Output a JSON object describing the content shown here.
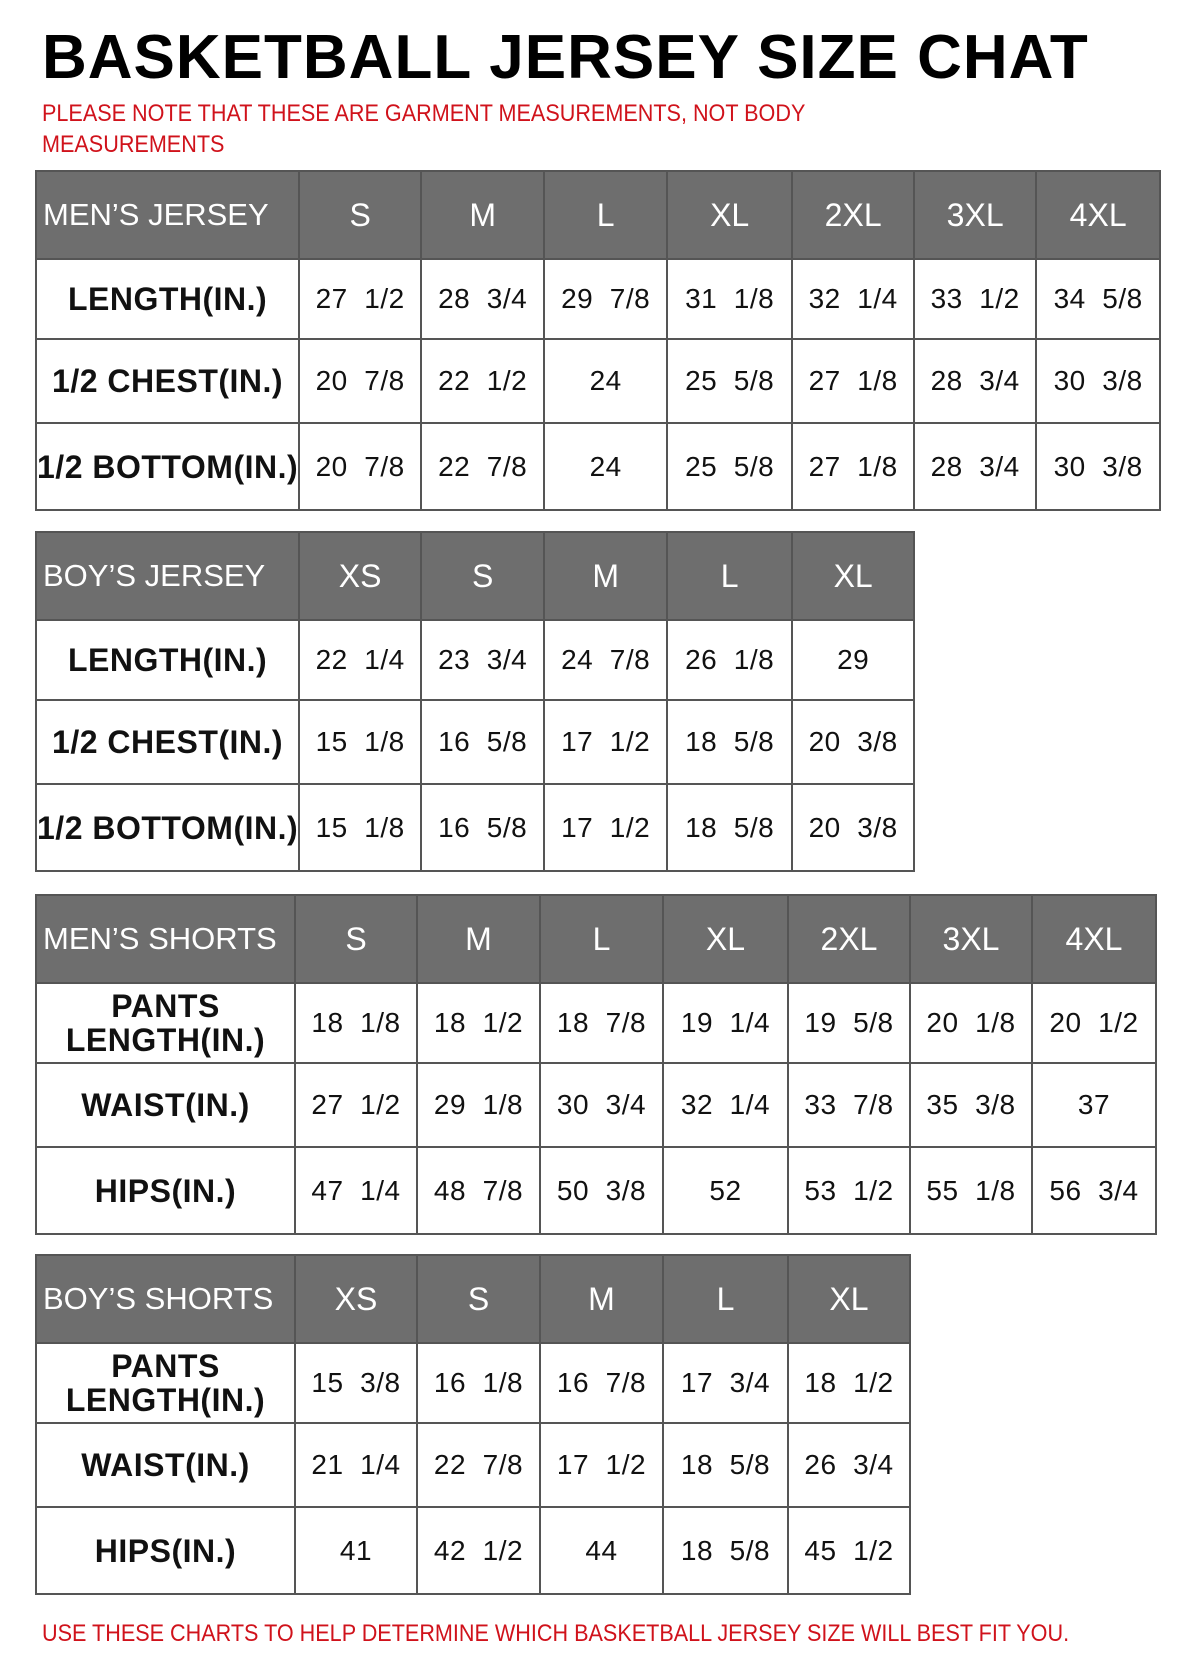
{
  "title": "BASKETBALL JERSEY SIZE CHAT",
  "note_line1": "PLEASE NOTE THAT THESE ARE GARMENT MEASUREMENTS, NOT BODY",
  "note_line2": "MEASUREMENTS",
  "footer": "USE THESE CHARTS TO HELP DETERMINE WHICH BASKETBALL JERSEY SIZE WILL BEST FIT YOU.",
  "colors": {
    "header_bg": "#6e6e6e",
    "note_red": "#d0121b"
  },
  "tables": [
    {
      "title": "MEN’S JERSEY",
      "sizes": [
        "S",
        "M",
        "L",
        "XL",
        "2XL",
        "3XL",
        "4XL"
      ],
      "rows": [
        {
          "label": "LENGTH(IN.)",
          "values": [
            "27  1/2",
            "28  3/4",
            "29  7/8",
            "31  1/8",
            "32  1/4",
            "33  1/2",
            "34  5/8"
          ]
        },
        {
          "label": "1/2  CHEST(IN.)",
          "values": [
            "20  7/8",
            "22  1/2",
            "24",
            "25  5/8",
            "27  1/8",
            "28  3/4",
            "30  3/8"
          ]
        },
        {
          "label": "1/2  BOTTOM(IN.)",
          "values": [
            "20  7/8",
            "22  7/8",
            "24",
            "25  5/8",
            "27  1/8",
            "28  3/4",
            "30  3/8"
          ]
        }
      ]
    },
    {
      "title": "BOY’S JERSEY",
      "sizes": [
        "XS",
        "S",
        "M",
        "L",
        "XL"
      ],
      "rows": [
        {
          "label": "LENGTH(IN.)",
          "values": [
            "22  1/4",
            "23  3/4",
            "24  7/8",
            "26  1/8",
            "29"
          ]
        },
        {
          "label": "1/2  CHEST(IN.)",
          "values": [
            "15  1/8",
            "16  5/8",
            "17  1/2",
            "18  5/8",
            "20  3/8"
          ]
        },
        {
          "label": "1/2  BOTTOM(IN.)",
          "values": [
            "15  1/8",
            "16  5/8",
            "17  1/2",
            "18  5/8",
            "20  3/8"
          ]
        }
      ]
    },
    {
      "title": "MEN’S SHORTS",
      "sizes": [
        "S",
        "M",
        "L",
        "XL",
        "2XL",
        "3XL",
        "4XL"
      ],
      "rows": [
        {
          "label": "PANTS\nLENGTH(IN.)",
          "values": [
            "18  1/8",
            "18  1/2",
            "18  7/8",
            "19  1/4",
            "19  5/8",
            "20  1/8",
            "20  1/2"
          ]
        },
        {
          "label": "WAIST(IN.)",
          "values": [
            "27  1/2",
            "29  1/8",
            "30  3/4",
            "32  1/4",
            "33  7/8",
            "35  3/8",
            "37"
          ]
        },
        {
          "label": "HIPS(IN.)",
          "values": [
            "47  1/4",
            "48  7/8",
            "50  3/8",
            "52",
            "53  1/2",
            "55  1/8",
            "56  3/4"
          ]
        }
      ]
    },
    {
      "title": "BOY’S SHORTS",
      "sizes": [
        "XS",
        "S",
        "M",
        "L",
        "XL"
      ],
      "rows": [
        {
          "label": "PANTS\nLENGTH(IN.)",
          "values": [
            "15  3/8",
            "16  1/8",
            "16  7/8",
            "17  3/4",
            "18  1/2"
          ]
        },
        {
          "label": "WAIST(IN.)",
          "values": [
            "21  1/4",
            "22  7/8",
            "17  1/2",
            "18  5/8",
            "26  3/4"
          ]
        },
        {
          "label": "HIPS(IN.)",
          "values": [
            "41",
            "42  1/2",
            "44",
            "18  5/8",
            "45  1/2"
          ]
        }
      ]
    }
  ]
}
